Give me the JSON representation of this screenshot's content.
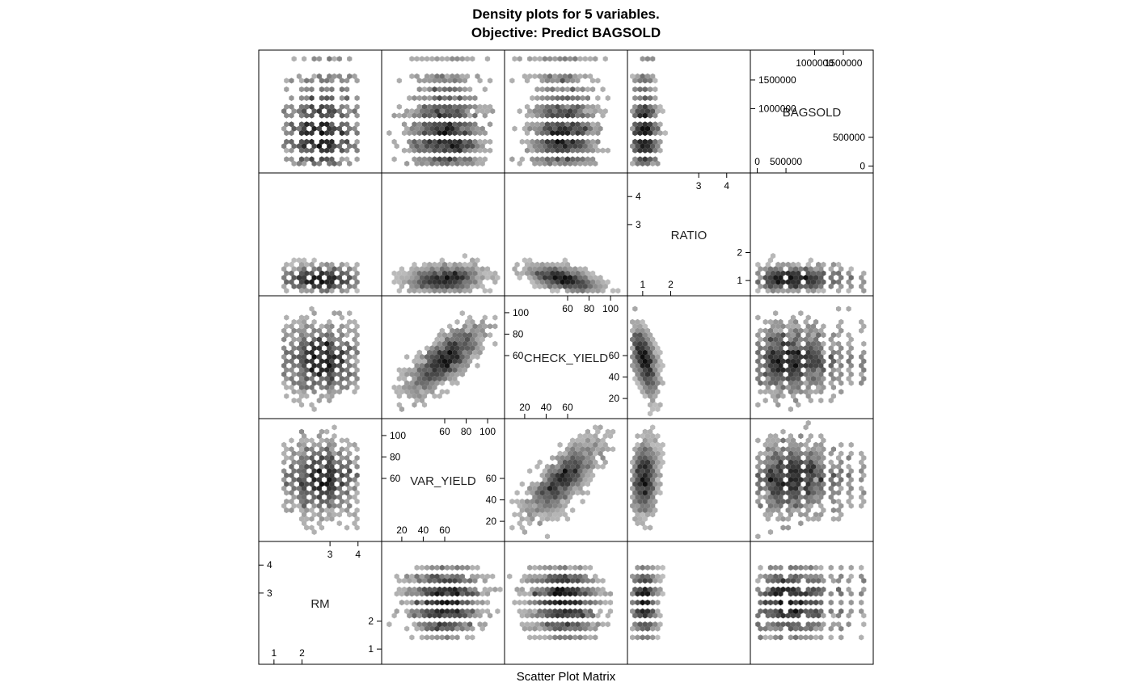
{
  "title_line1": "Density plots for 5 variables.",
  "title_line2": "Objective: Predict BAGSOLD",
  "xlabel": "Scatter Plot Matrix",
  "chart_data": {
    "type": "scatter",
    "subtype": "hexbin scatter plot matrix",
    "title": "Density plots for 5 variables. Objective: Predict BAGSOLD",
    "xlabel": "Scatter Plot Matrix",
    "variables": [
      "RM",
      "VAR_YIELD",
      "CHECK_YIELD",
      "RATIO",
      "BAGSOLD"
    ],
    "diagonal_labels": [
      "RM",
      "VAR_YIELD",
      "CHECK_YIELD",
      "RATIO",
      "BAGSOLD"
    ],
    "ranges": {
      "RM": [
        0.6,
        4.7
      ],
      "VAR_YIELD": [
        5,
        112
      ],
      "CHECK_YIELD": [
        5,
        112
      ],
      "RATIO": [
        0.6,
        4.7
      ],
      "BAGSOLD": [
        -50000,
        1950000
      ]
    },
    "axis_ticks": {
      "RM": {
        "lower": [
          1,
          2
        ],
        "upper": [
          3,
          4
        ]
      },
      "VAR_YIELD": {
        "lower": [
          20,
          40,
          60
        ],
        "upper": [
          60,
          80,
          100
        ]
      },
      "CHECK_YIELD": {
        "lower": [
          20,
          40,
          60
        ],
        "upper": [
          60,
          80,
          100
        ]
      },
      "RATIO": {
        "lower": [
          1,
          2
        ],
        "upper": [
          3,
          4
        ]
      },
      "BAGSOLD": {
        "lower": [
          0,
          500000
        ],
        "upper": [
          1000000,
          1500000
        ]
      }
    },
    "tick_labels": {
      "RM": {
        "lower": [
          "1",
          "2"
        ],
        "upper": [
          "3",
          "4"
        ]
      },
      "VAR_YIELD": {
        "lower": [
          "20",
          "40",
          "60"
        ],
        "upper": [
          "60",
          "80",
          "100"
        ]
      },
      "CHECK_YIELD": {
        "lower": [
          "20",
          "40",
          "60"
        ],
        "upper": [
          "60",
          "80",
          "100"
        ]
      },
      "RATIO": {
        "lower": [
          "1",
          "2"
        ],
        "upper": [
          "3",
          "4"
        ]
      },
      "BAGSOLD": {
        "lower": [
          "0",
          "500000"
        ],
        "upper": [
          "1000000",
          "1500000"
        ]
      }
    },
    "densities": {
      "RM": {
        "type": "discrete",
        "values": [
          1.4,
          1.65,
          1.9,
          2.15,
          2.4,
          2.65,
          2.9,
          3.15,
          3.4,
          3.65,
          3.9
        ],
        "weights": [
          0.2,
          0.35,
          0.5,
          0.7,
          0.85,
          1.0,
          0.95,
          0.8,
          0.6,
          0.4,
          0.2
        ]
      },
      "VAR_YIELD": {
        "type": "continuous",
        "mean": 60,
        "sd": 16
      },
      "CHECK_YIELD": {
        "type": "continuous",
        "mean": 56,
        "sd": 15
      },
      "RATIO": {
        "type": "continuous",
        "mean": 1.05,
        "sd": 0.22
      },
      "BAGSOLD": {
        "type": "discrete",
        "values": [
          50000,
          150000,
          250000,
          350000,
          450000,
          550000,
          650000,
          750000,
          850000,
          950000,
          1050000,
          1150000,
          1300000,
          1450000,
          1600000,
          1850000
        ],
        "weights": [
          0.3,
          0.5,
          0.7,
          0.9,
          1.0,
          1.0,
          0.9,
          0.8,
          0.7,
          0.6,
          0.5,
          0.4,
          0.3,
          0.25,
          0.2,
          0.15
        ]
      }
    },
    "correlations": [
      {
        "pair": [
          "VAR_YIELD",
          "CHECK_YIELD"
        ],
        "r": 0.75
      },
      {
        "pair": [
          "RATIO",
          "CHECK_YIELD"
        ],
        "r": -0.55
      },
      {
        "pair": [
          "RATIO",
          "VAR_YIELD"
        ],
        "r": 0.2
      }
    ],
    "grid": false,
    "legend": "none"
  }
}
